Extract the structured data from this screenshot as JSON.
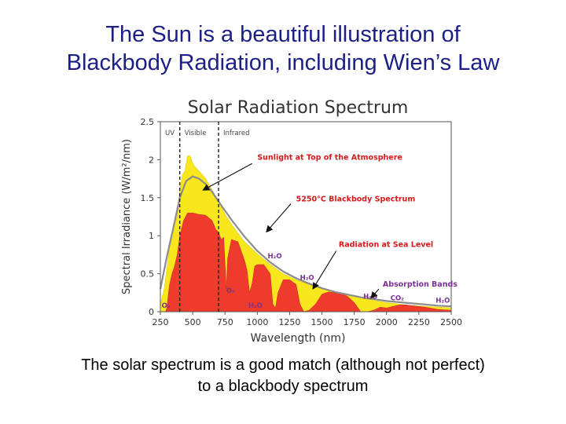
{
  "slide": {
    "title_line1": "The Sun is a beautiful illustration of",
    "title_line2": "Blackbody Radiation, including Wien’s Law",
    "caption_line1": "The solar spectrum is a good match (although not perfect)",
    "caption_line2": "to a blackbody spectrum"
  },
  "chart_data": {
    "type": "area",
    "title": "Solar Radiation Spectrum",
    "xlabel": "Wavelength (nm)",
    "ylabel": "Spectral Irradiance (W/m²/nm)",
    "xlim": [
      250,
      2500
    ],
    "ylim": [
      0,
      2.5
    ],
    "xticks": [
      250,
      500,
      750,
      1000,
      1250,
      1500,
      1750,
      2000,
      2250,
      2500
    ],
    "yticks": [
      0,
      0.5,
      1,
      1.5,
      2,
      2.5
    ],
    "region_labels": [
      "UV",
      "Visible",
      "Infrared"
    ],
    "region_boundaries": [
      400,
      700
    ],
    "series": [
      {
        "name": "Sunlight at Top of the Atmosphere",
        "color": "#f8e71c",
        "x": [
          250,
          280,
          300,
          320,
          340,
          360,
          380,
          400,
          420,
          440,
          460,
          480,
          500,
          520,
          550,
          600,
          650,
          700,
          750,
          800,
          900,
          1000,
          1100,
          1200,
          1300,
          1400,
          1500,
          1600,
          1700,
          1800,
          1900,
          2000,
          2200,
          2400,
          2500
        ],
        "y": [
          0.1,
          0.3,
          0.55,
          0.85,
          1.05,
          1.15,
          1.25,
          1.6,
          1.8,
          1.85,
          2.05,
          2.05,
          1.95,
          1.9,
          1.85,
          1.75,
          1.6,
          1.45,
          1.28,
          1.15,
          0.92,
          0.76,
          0.62,
          0.5,
          0.42,
          0.36,
          0.3,
          0.26,
          0.22,
          0.18,
          0.15,
          0.12,
          0.08,
          0.06,
          0.05
        ]
      },
      {
        "name": "5250°C Blackbody Spectrum",
        "color": "#8c8c8c",
        "x": [
          250,
          300,
          350,
          400,
          450,
          500,
          550,
          600,
          650,
          700,
          750,
          800,
          900,
          1000,
          1100,
          1200,
          1300,
          1400,
          1500,
          1600,
          1800,
          2000,
          2200,
          2400,
          2500
        ],
        "y": [
          0.3,
          0.72,
          1.1,
          1.5,
          1.72,
          1.78,
          1.75,
          1.68,
          1.58,
          1.45,
          1.33,
          1.21,
          0.99,
          0.8,
          0.65,
          0.53,
          0.44,
          0.37,
          0.31,
          0.26,
          0.19,
          0.14,
          0.11,
          0.08,
          0.07
        ]
      },
      {
        "name": "Radiation at Sea Level",
        "color": "#ef3b2c",
        "x": [
          250,
          290,
          300,
          320,
          340,
          360,
          380,
          400,
          430,
          460,
          500,
          550,
          600,
          650,
          680,
          700,
          720,
          740,
          760,
          770,
          800,
          850,
          900,
          920,
          940,
          960,
          980,
          1000,
          1050,
          1100,
          1120,
          1140,
          1160,
          1200,
          1250,
          1300,
          1330,
          1360,
          1400,
          1450,
          1500,
          1550,
          1600,
          1650,
          1700,
          1750,
          1800,
          1850,
          1900,
          1950,
          2000,
          2050,
          2100,
          2150,
          2200,
          2300,
          2400,
          2500
        ],
        "y": [
          0,
          0,
          0.05,
          0.35,
          0.5,
          0.6,
          0.75,
          1.0,
          1.2,
          1.3,
          1.3,
          1.28,
          1.27,
          1.2,
          1.08,
          1.05,
          0.95,
          0.98,
          0.3,
          0.7,
          0.95,
          0.92,
          0.68,
          0.55,
          0.25,
          0.38,
          0.6,
          0.62,
          0.62,
          0.5,
          0.1,
          0.05,
          0.25,
          0.42,
          0.42,
          0.36,
          0.1,
          0.0,
          0.02,
          0.1,
          0.23,
          0.26,
          0.25,
          0.24,
          0.2,
          0.12,
          0.0,
          0.0,
          0.02,
          0.06,
          0.05,
          0.07,
          0.09,
          0.09,
          0.08,
          0.06,
          0.03,
          0.02
        ]
      }
    ],
    "annotations": [
      {
        "text": "Sunlight at Top of the Atmosphere",
        "x": 1000,
        "y": 2.0,
        "color": "#d7191c"
      },
      {
        "text": "5250°C Blackbody Spectrum",
        "x": 1300,
        "y": 1.45,
        "color": "#d7191c"
      },
      {
        "text": "Radiation at Sea Level",
        "x": 1630,
        "y": 0.85,
        "color": "#d7191c"
      },
      {
        "text": "Absorption Bands",
        "x": 1970,
        "y": 0.33,
        "color": "#7b3294"
      },
      {
        "text": "H₂O",
        "x": 1080,
        "y": 0.7,
        "color": "#7b3294"
      },
      {
        "text": "H₂O",
        "x": 1330,
        "y": 0.42,
        "color": "#7b3294"
      },
      {
        "text": "O₂",
        "x": 760,
        "y": 0.25,
        "color": "#7b3294"
      },
      {
        "text": "H₂O",
        "x": 930,
        "y": 0.05,
        "color": "#7b3294"
      },
      {
        "text": "O₃",
        "x": 260,
        "y": 0.05,
        "color": "#7b3294"
      },
      {
        "text": "H₂O",
        "x": 1820,
        "y": 0.17,
        "color": "#7b3294"
      },
      {
        "text": "CO₂",
        "x": 2030,
        "y": 0.15,
        "color": "#7b3294"
      },
      {
        "text": "H₂O",
        "x": 2380,
        "y": 0.12,
        "color": "#7b3294"
      }
    ]
  }
}
